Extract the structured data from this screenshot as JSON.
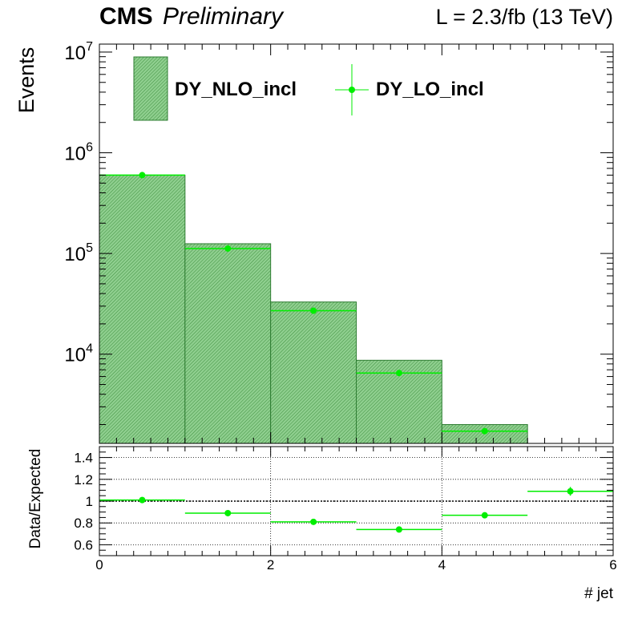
{
  "header": {
    "cms": "CMS",
    "preliminary": "Preliminary",
    "lumi": "L = 2.3/fb (13 TeV)"
  },
  "chart_data": [
    {
      "type": "bar",
      "panel": "main",
      "ylabel": "Events",
      "yscale": "log",
      "ylim": [
        1300,
        12000000
      ],
      "xlim": [
        0,
        6
      ],
      "y_ticks": [
        {
          "value": 10000,
          "base": "10",
          "exp": "4"
        },
        {
          "value": 100000,
          "base": "10",
          "exp": "5"
        },
        {
          "value": 1000000,
          "base": "10",
          "exp": "6"
        },
        {
          "value": 10000000,
          "base": "10",
          "exp": "7"
        }
      ],
      "legend_position": "top",
      "legend": [
        {
          "label": "DY_NLO_incl",
          "kind": "hist"
        },
        {
          "label": "DY_LO_incl",
          "kind": "marker"
        }
      ],
      "series": [
        {
          "name": "DY_NLO_incl",
          "kind": "histogram",
          "color": "#2e7d32",
          "fill": "#7fbf7f",
          "bins": [
            {
              "x0": 0,
              "x1": 1,
              "value": 600000
            },
            {
              "x0": 1,
              "x1": 2,
              "value": 125000
            },
            {
              "x0": 2,
              "x1": 3,
              "value": 33000
            },
            {
              "x0": 3,
              "x1": 4,
              "value": 8700
            },
            {
              "x0": 4,
              "x1": 5,
              "value": 2000
            }
          ]
        },
        {
          "name": "DY_LO_incl",
          "kind": "points",
          "color": "#00ee00",
          "points": [
            {
              "x": 0.5,
              "xerr": 0.5,
              "y": 600000
            },
            {
              "x": 1.5,
              "xerr": 0.5,
              "y": 112000
            },
            {
              "x": 2.5,
              "xerr": 0.5,
              "y": 27000
            },
            {
              "x": 3.5,
              "xerr": 0.5,
              "y": 6500
            },
            {
              "x": 4.5,
              "xerr": 0.5,
              "y": 1720
            }
          ]
        }
      ]
    },
    {
      "type": "scatter",
      "panel": "ratio",
      "xlabel": "# jet",
      "ylabel": "Data/Expected",
      "xlim": [
        0,
        6
      ],
      "ylim": [
        0.5,
        1.5
      ],
      "x_ticks": [
        "0",
        "2",
        "4",
        "6"
      ],
      "x_tick_values": [
        0,
        2,
        4,
        6
      ],
      "y_ticks": [
        "0.6",
        "0.8",
        "1",
        "1.2",
        "1.4"
      ],
      "y_tick_values": [
        0.6,
        0.8,
        1,
        1.2,
        1.4
      ],
      "grid": true,
      "reference_line": 1,
      "series": [
        {
          "name": "",
          "color": "#00ee00",
          "points": [
            {
              "x": 0.5,
              "xerr": 0.5,
              "y": 1.01,
              "yerr": 0.006
            },
            {
              "x": 1.5,
              "xerr": 0.5,
              "y": 0.89,
              "yerr": 0.01
            },
            {
              "x": 2.5,
              "xerr": 0.5,
              "y": 0.81,
              "yerr": 0.012
            },
            {
              "x": 3.5,
              "xerr": 0.5,
              "y": 0.74,
              "yerr": 0.015
            },
            {
              "x": 4.5,
              "xerr": 0.5,
              "y": 0.87,
              "yerr": 0.02
            },
            {
              "x": 5.5,
              "xerr": 0.5,
              "y": 1.09,
              "yerr": 0.04
            }
          ]
        }
      ]
    }
  ]
}
